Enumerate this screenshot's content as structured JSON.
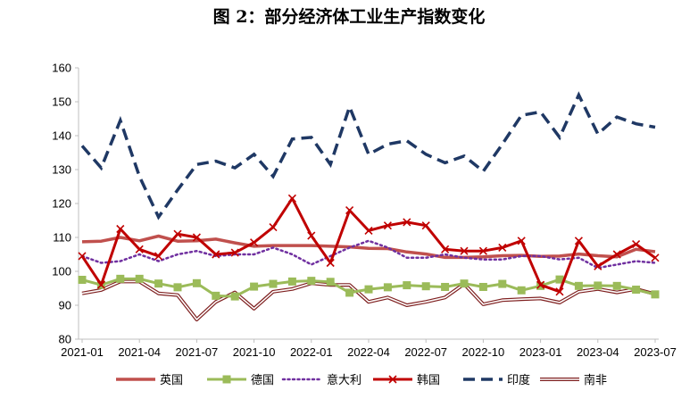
{
  "chart_data": {
    "type": "line",
    "title": "图 2：部分经济体工业生产指数变化",
    "xlabel": "",
    "ylabel": "",
    "ylim": [
      80,
      160
    ],
    "yticks": [
      80,
      90,
      100,
      110,
      120,
      130,
      140,
      150,
      160
    ],
    "x": [
      "2021-01",
      "2021-02",
      "2021-03",
      "2021-04",
      "2021-05",
      "2021-06",
      "2021-07",
      "2021-08",
      "2021-09",
      "2021-10",
      "2021-11",
      "2021-12",
      "2022-01",
      "2022-02",
      "2022-03",
      "2022-04",
      "2022-05",
      "2022-06",
      "2022-07",
      "2022-08",
      "2022-09",
      "2022-10",
      "2022-11",
      "2022-12",
      "2023-01",
      "2023-02",
      "2023-03",
      "2023-04",
      "2023-05",
      "2023-06",
      "2023-07"
    ],
    "xtick_labels": [
      "2021-01",
      "2021-04",
      "2021-07",
      "2021-10",
      "2022-01",
      "2022-04",
      "2022-07",
      "2022-10",
      "2023-01",
      "2023-04",
      "2023-07"
    ],
    "grid": false,
    "legend": "bottom",
    "series": [
      {
        "name": "英国",
        "color": "#c0504d",
        "style": "solid-thick",
        "values": [
          108.7,
          108.9,
          110.0,
          109.0,
          110.4,
          108.9,
          109.0,
          109.5,
          108.4,
          107.4,
          107.6,
          107.6,
          107.6,
          107.4,
          107.2,
          106.8,
          106.7,
          105.7,
          105.1,
          104.1,
          104.1,
          104.3,
          104.6,
          104.7,
          104.4,
          104.5,
          105.1,
          104.6,
          104.3,
          106.5,
          105.8
        ]
      },
      {
        "name": "德国",
        "color": "#9bbb59",
        "style": "square",
        "values": [
          97.5,
          96.0,
          97.8,
          97.8,
          96.4,
          95.3,
          96.5,
          92.8,
          92.6,
          95.5,
          96.3,
          97.0,
          97.2,
          96.9,
          93.7,
          94.7,
          95.3,
          95.9,
          95.6,
          95.4,
          96.4,
          95.4,
          96.3,
          94.4,
          95.7,
          97.6,
          95.7,
          95.8,
          95.7,
          94.6,
          93.2
        ]
      },
      {
        "name": "意大利",
        "color": "#7030a0",
        "style": "dotted",
        "values": [
          104.5,
          102.5,
          103.0,
          105.0,
          103.0,
          105.0,
          106.0,
          104.5,
          105.0,
          105.0,
          107.0,
          105.0,
          102.0,
          104.5,
          107.0,
          109.0,
          107.0,
          104.0,
          104.0,
          105.0,
          104.0,
          103.5,
          103.5,
          104.5,
          104.5,
          103.5,
          104.0,
          101.0,
          102.0,
          103.0,
          102.5
        ]
      },
      {
        "name": "韩国",
        "color": "#c00000",
        "style": "cross",
        "values": [
          104.5,
          96.0,
          112.5,
          106.5,
          104.5,
          111.0,
          110.0,
          105.0,
          105.5,
          108.5,
          113.0,
          121.5,
          110.5,
          102.5,
          118.0,
          112.0,
          113.5,
          114.5,
          113.5,
          106.5,
          106.0,
          106.0,
          107.0,
          109.0,
          96.0,
          94.0,
          109.0,
          101.5,
          105.0,
          108.0,
          104.0
        ]
      },
      {
        "name": "印度",
        "color": "#1f3864",
        "style": "dashed",
        "values": [
          137.0,
          130.5,
          144.5,
          128.0,
          116.0,
          124.0,
          131.5,
          132.5,
          130.5,
          134.5,
          128.0,
          139.0,
          139.5,
          131.5,
          148.5,
          134.5,
          137.5,
          138.5,
          134.5,
          132.0,
          134.0,
          129.5,
          137.5,
          146.0,
          147.0,
          139.5,
          152.0,
          140.5,
          145.5,
          143.5,
          142.5
        ]
      },
      {
        "name": "南非",
        "color": "#7f2020",
        "style": "double",
        "values": [
          93.5,
          94.5,
          97.0,
          97.0,
          93.5,
          93.0,
          85.8,
          91.0,
          93.8,
          89.0,
          94.0,
          94.8,
          96.5,
          96.0,
          96.0,
          91.0,
          92.3,
          90.0,
          91.0,
          92.3,
          96.3,
          90.3,
          91.5,
          91.8,
          92.0,
          90.8,
          94.0,
          94.8,
          93.8,
          94.8,
          93.3
        ]
      }
    ]
  }
}
